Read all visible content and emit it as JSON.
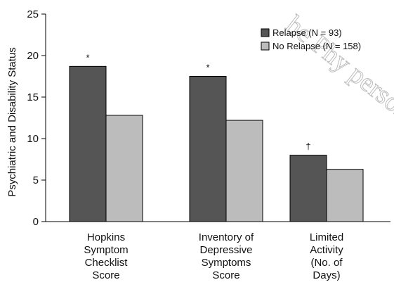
{
  "chart_data": {
    "type": "bar",
    "title": "",
    "xlabel": "",
    "ylabel": "Psychiatric and Disability Status",
    "ylim": [
      0,
      25
    ],
    "yticks": [
      0,
      5,
      10,
      15,
      20,
      25
    ],
    "grid": false,
    "legend_position": "top-right",
    "categories": [
      [
        "Hopkins",
        "Symptom",
        "Checklist",
        "Score"
      ],
      [
        "Inventory of",
        "Depressive",
        "Symptoms",
        "Score"
      ],
      [
        "Limited",
        "Activity",
        "(No. of",
        "Days)"
      ]
    ],
    "series": [
      {
        "name": "Relapse (N = 93)",
        "color": "#555555",
        "values": [
          18.7,
          17.5,
          8.0
        ]
      },
      {
        "name": "No Relapse (N = 158)",
        "color": "#bcbcbc",
        "values": [
          12.8,
          12.2,
          6.3
        ]
      }
    ],
    "annotations": [
      "*",
      "*",
      "†"
    ],
    "watermark": "he Phy personal"
  }
}
